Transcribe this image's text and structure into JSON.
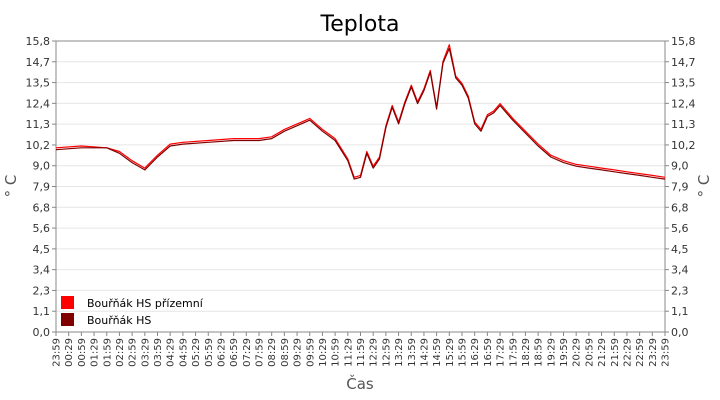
{
  "chart_data": {
    "type": "line",
    "title": "Teplota",
    "xlabel": "Čas",
    "ylabel": "° C",
    "ylim": [
      0,
      15.8
    ],
    "yticks": [
      "0,0",
      "1,1",
      "2,3",
      "3,4",
      "4,5",
      "5,6",
      "6,8",
      "7,9",
      "9,0",
      "10,2",
      "11,3",
      "12,4",
      "13,5",
      "14,7",
      "15,8"
    ],
    "xticks": [
      "23:59",
      "00:29",
      "00:59",
      "01:29",
      "01:59",
      "02:29",
      "02:59",
      "03:29",
      "03:59",
      "04:29",
      "04:59",
      "05:29",
      "05:59",
      "06:29",
      "06:59",
      "07:29",
      "07:59",
      "08:29",
      "08:59",
      "09:29",
      "09:59",
      "10:29",
      "10:59",
      "11:29",
      "11:59",
      "12:29",
      "12:59",
      "13:29",
      "13:59",
      "14:29",
      "14:59",
      "15:29",
      "15:59",
      "16:29",
      "16:59",
      "17:29",
      "17:59",
      "18:29",
      "18:59",
      "19:29",
      "19:59",
      "20:29",
      "20:59",
      "21:29",
      "21:59",
      "22:29",
      "22:59",
      "23:29",
      "23:59"
    ],
    "grid": true,
    "legend_position": "bottom-left",
    "x_hours": [
      0,
      1,
      2,
      2.5,
      3,
      3.5,
      4,
      4.5,
      5,
      6,
      7,
      8,
      8.5,
      9,
      9.5,
      10,
      10.5,
      11,
      11.5,
      11.75,
      12,
      12.25,
      12.5,
      12.75,
      13,
      13.25,
      13.5,
      13.75,
      14,
      14.25,
      14.5,
      14.75,
      15,
      15.25,
      15.5,
      15.75,
      16,
      16.25,
      16.5,
      16.75,
      17,
      17.25,
      17.5,
      17.75,
      18,
      18.5,
      19,
      19.5,
      20,
      20.5,
      21,
      21.5,
      22,
      22.5,
      23,
      23.5,
      24
    ],
    "series": [
      {
        "name": "Bouřňák HS přízemní",
        "color": "#ff0000",
        "values": [
          10.0,
          10.1,
          10.0,
          9.8,
          9.3,
          8.9,
          9.6,
          10.2,
          10.3,
          10.4,
          10.5,
          10.5,
          10.6,
          11.0,
          11.3,
          11.6,
          11.0,
          10.5,
          9.4,
          8.4,
          8.5,
          9.8,
          9.0,
          9.5,
          11.2,
          12.3,
          11.4,
          12.5,
          13.4,
          12.5,
          13.2,
          14.2,
          12.2,
          14.7,
          15.6,
          13.9,
          13.5,
          12.8,
          11.4,
          11.0,
          11.8,
          12.0,
          12.4,
          12.0,
          11.6,
          10.9,
          10.2,
          9.6,
          9.3,
          9.1,
          9.0,
          8.9,
          8.8,
          8.7,
          8.6,
          8.5,
          8.4
        ]
      },
      {
        "name": "Bouřňák HS",
        "color": "#800000",
        "values": [
          9.9,
          10.0,
          10.0,
          9.7,
          9.2,
          8.8,
          9.5,
          10.1,
          10.2,
          10.3,
          10.4,
          10.4,
          10.5,
          10.9,
          11.2,
          11.5,
          10.9,
          10.4,
          9.3,
          8.3,
          8.4,
          9.7,
          8.9,
          9.4,
          11.1,
          12.2,
          11.3,
          12.4,
          13.3,
          12.4,
          13.1,
          14.1,
          12.1,
          14.6,
          15.4,
          13.8,
          13.4,
          12.7,
          11.3,
          10.9,
          11.7,
          11.9,
          12.3,
          11.9,
          11.5,
          10.8,
          10.1,
          9.5,
          9.2,
          9.0,
          8.9,
          8.8,
          8.7,
          8.6,
          8.5,
          8.4,
          8.3
        ]
      }
    ]
  }
}
